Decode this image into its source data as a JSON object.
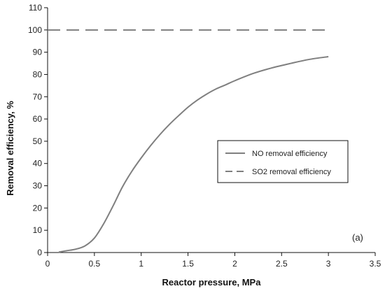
{
  "chart_data": {
    "type": "line",
    "title": "",
    "xlabel": "Reactor pressure, MPa",
    "ylabel": "Removal efficiency, %",
    "xlim": [
      0,
      3.5
    ],
    "ylim": [
      0,
      110
    ],
    "xticks": [
      0,
      0.5,
      1,
      1.5,
      2,
      2.5,
      3,
      3.5
    ],
    "xtick_labels": [
      "0",
      "0.5",
      "1",
      "1.5",
      "2",
      "2.5",
      "3",
      "3.5"
    ],
    "yticks": [
      0,
      10,
      20,
      30,
      40,
      50,
      60,
      70,
      80,
      90,
      100,
      110
    ],
    "ytick_labels": [
      "0",
      "10",
      "20",
      "30",
      "40",
      "50",
      "60",
      "70",
      "80",
      "90",
      "100",
      "110"
    ],
    "grid": false,
    "legend_position": "center-right",
    "annotation": "(a)",
    "series": [
      {
        "name": "NO removal efficiency",
        "style": "solid",
        "color": "#7f7f7f",
        "x": [
          0.12,
          0.2,
          0.3,
          0.4,
          0.5,
          0.6,
          0.7,
          0.8,
          0.9,
          1.0,
          1.1,
          1.2,
          1.3,
          1.4,
          1.5,
          1.6,
          1.7,
          1.8,
          1.9,
          2.0,
          2.2,
          2.4,
          2.6,
          2.8,
          3.0
        ],
        "y": [
          0.2,
          0.8,
          1.5,
          3.0,
          6.5,
          13,
          21,
          29.5,
          36.5,
          42.5,
          48,
          53,
          57.5,
          61.5,
          65.3,
          68.5,
          71.2,
          73.5,
          75.3,
          77.2,
          80.5,
          83,
          85,
          86.8,
          88
        ]
      },
      {
        "name": "SO2 removal efficiency",
        "style": "dashed",
        "color": "#7f7f7f",
        "x": [
          0,
          3.0
        ],
        "y": [
          100,
          100
        ]
      }
    ]
  }
}
